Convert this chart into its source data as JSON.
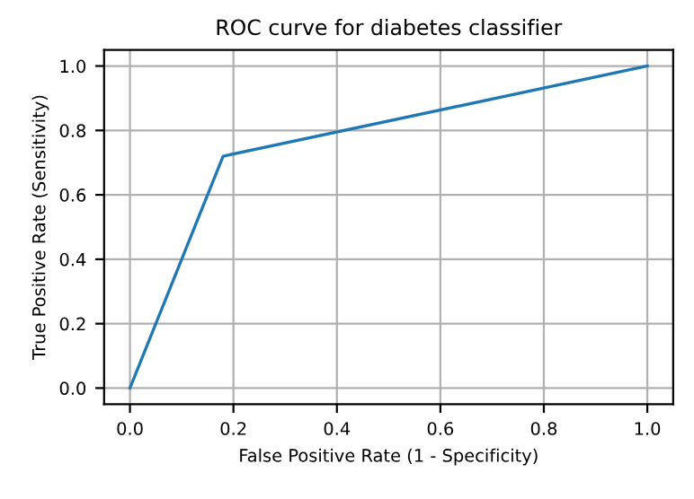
{
  "chart_data": {
    "type": "line",
    "title": "ROC curve for diabetes classifier",
    "xlabel": "False Positive Rate (1 - Specificity)",
    "ylabel": "True Positive Rate (Sensitivity)",
    "x": [
      0,
      0.18,
      1
    ],
    "series": [
      {
        "color": "#1f77b4",
        "values": [
          0,
          0.72,
          1
        ]
      }
    ],
    "xlim": [
      -0.05,
      1.05
    ],
    "ylim": [
      -0.05,
      1.05
    ],
    "xticks": [
      {
        "value": 0,
        "label": "0.0"
      },
      0.2,
      0.4,
      0.6,
      0.8,
      {
        "value": 1,
        "label": "1.0"
      }
    ],
    "yticks": [
      {
        "value": 0,
        "label": "0.0"
      },
      0.2,
      0.4,
      0.6,
      0.8,
      {
        "value": 1,
        "label": "1.0"
      }
    ],
    "grid": true
  }
}
